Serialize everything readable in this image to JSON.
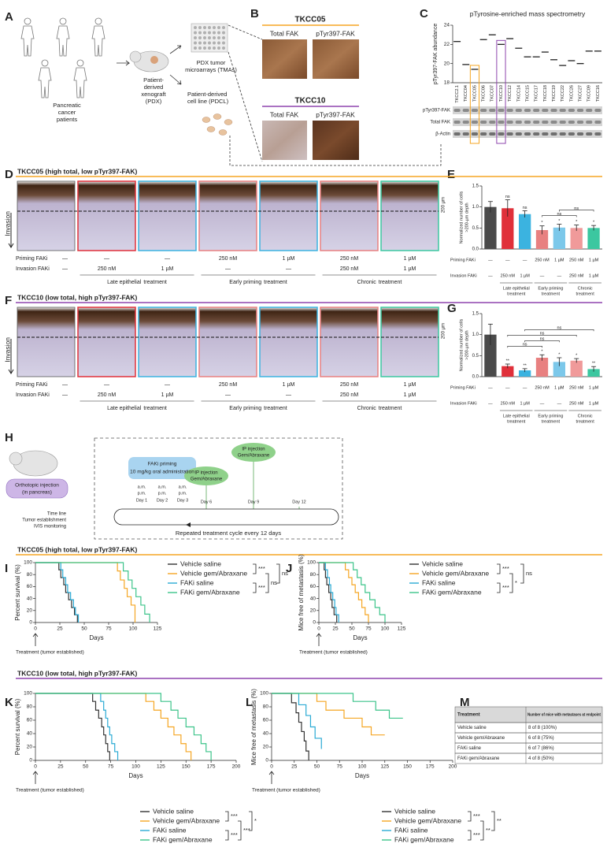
{
  "panel_labels": {
    "a": "A",
    "b": "B",
    "c": "C",
    "d": "D",
    "e": "E",
    "f": "F",
    "g": "G",
    "h": "H",
    "i": "I",
    "j": "J",
    "k": "K",
    "l": "L",
    "m": "M"
  },
  "panel_a": {
    "patients": [
      "Pancreatic",
      "cancer",
      "patients"
    ],
    "pdx": [
      "Patient-",
      "derived",
      "xenograft",
      "(PDX)"
    ],
    "tma": [
      "PDX tumor",
      "microarrays (TMAs)"
    ],
    "pdcl": [
      "Patient-derived",
      "cell line (PDCL)"
    ]
  },
  "panel_b": {
    "samples": [
      {
        "name": "TKCC05",
        "color": "#f5a623"
      },
      {
        "name": "TKCC10",
        "color": "#8e44ad"
      }
    ],
    "stains": [
      "Total FAK",
      "pTyr397-FAK"
    ]
  },
  "blot": {
    "rows": [
      "pTyr397-FAK",
      "Total FAK",
      "β-Actin"
    ]
  },
  "cohorts": [
    {
      "title": "TKCC05 (high total, low pTyr397-FAK)",
      "color": "#f5a623"
    },
    {
      "title": "TKCC10 (low total, high pTyr397-FAK)",
      "color": "#8e44ad"
    }
  ],
  "organotypic": {
    "invasion": "Invasion",
    "scale": "200 µm",
    "row_labels": [
      "Priming FAKi",
      "Invasion FAKi"
    ],
    "priming": [
      "—",
      "—",
      "—",
      "250 nM",
      "1 µM",
      "250 nM",
      "1 µM"
    ],
    "invasion_doses": [
      "—",
      "250 nM",
      "1 µM",
      "—",
      "—",
      "250 nM",
      "1 µM"
    ],
    "groups": [
      {
        "label": [
          "Late epithelial",
          "treatment"
        ],
        "columns": [
          1,
          2
        ]
      },
      {
        "label": [
          "Early priming",
          "treatment"
        ],
        "columns": [
          3,
          4
        ]
      },
      {
        "label": [
          "Chronic",
          "treatment"
        ],
        "columns": [
          5,
          6
        ]
      }
    ],
    "colors": [
      "#555555",
      "#e0303a",
      "#3bb3e0",
      "#e88080",
      "#3bb3e0",
      "#e88080",
      "#3cc7a0"
    ]
  },
  "panel_h": {
    "injection": [
      "Orthotopic injection",
      "(in pancreas)"
    ],
    "timeline": [
      "Time line",
      "Tumor establishment",
      "IVIS monitoring"
    ],
    "priming": [
      "FAKi priming",
      "10 mg/kg oral administration"
    ],
    "ampm": [
      "a.m.",
      "p.m."
    ],
    "days": [
      "Day 1",
      "Day 2",
      "Day 3",
      "Day 6",
      "Day 9",
      "Day 12"
    ],
    "ip": [
      "IP injection",
      "Gem/Abraxane"
    ],
    "cycle": "Repeated treatment cycle every 12 days"
  },
  "chart_data": [
    {
      "type": "dash",
      "title": "pTyrosine-enriched mass spectrometry",
      "y_label": "pTyr397-FAK abundance",
      "categories": [
        "TKCC2.1",
        "TKCC04",
        "TKCC05",
        "TKCC06",
        "TKCC07",
        "TKCC10",
        "TKCC12",
        "TKCC14",
        "TKCC15",
        "TKCC17",
        "TKCC18",
        "TKCC19",
        "TKCC22",
        "TKCC26",
        "TKCC27",
        "TKCC09",
        "TKCC16"
      ],
      "values": [
        22.3,
        19.9,
        19.4,
        22.5,
        23.0,
        22.0,
        22.6,
        21.6,
        20.7,
        20.7,
        21.2,
        20.4,
        19.8,
        20.3,
        20.0,
        21.3,
        21.3
      ],
      "color": "#222222",
      "ylim": [
        18,
        24
      ],
      "yticks": [
        18,
        20,
        22,
        24
      ],
      "highlight": [
        {
          "category": "TKCC05",
          "color": "#f5a623"
        },
        {
          "category": "TKCC10",
          "color": "#8e44ad"
        }
      ]
    },
    {
      "type": "bar",
      "y_label": [
        "Normalized number of cells",
        ">200-µm depth"
      ],
      "values": [
        1.0,
        0.97,
        0.83,
        0.45,
        0.51,
        0.5,
        0.5
      ],
      "errors": [
        0.13,
        0.2,
        0.08,
        0.1,
        0.08,
        0.07,
        0.06
      ],
      "colors": [
        "#4a4a4a",
        "#e0303a",
        "#3bb3e0",
        "#e88080",
        "#7cc8ea",
        "#f09a9a",
        "#3cc7a0"
      ],
      "markers": [
        null,
        "ns",
        "ns",
        "*",
        "*",
        "*",
        "*"
      ],
      "brackets": [
        {
          "from": 3,
          "to": 5,
          "label": "ns"
        },
        {
          "from": 4,
          "to": 6,
          "label": "ns"
        }
      ],
      "ylim": [
        0,
        1.5
      ],
      "yticks": [
        {
          "value": 0,
          "label": "0.0"
        },
        {
          "value": 0.5,
          "label": "0.5"
        },
        {
          "value": 1,
          "label": "1.0"
        },
        {
          "value": 1.5,
          "label": "1.5"
        }
      ]
    },
    {
      "type": "bar",
      "y_label": [
        "Normalized number of cells",
        ">200-µm depth"
      ],
      "values": [
        1.0,
        0.25,
        0.15,
        0.45,
        0.35,
        0.38,
        0.18
      ],
      "errors": [
        0.25,
        0.05,
        0.04,
        0.07,
        0.1,
        0.05,
        0.06
      ],
      "colors": [
        "#4a4a4a",
        "#e0303a",
        "#3bb3e0",
        "#e88080",
        "#7cc8ea",
        "#f09a9a",
        "#3cc7a0"
      ],
      "markers": [
        null,
        "**",
        "**",
        "*",
        "*",
        "*",
        "**"
      ],
      "brackets": [
        {
          "from": 1,
          "to": 3,
          "label": "ns"
        },
        {
          "from": 2,
          "to": 4,
          "label": "ns"
        },
        {
          "from": 1,
          "to": 5,
          "label": "ns"
        },
        {
          "from": 2,
          "to": 6,
          "label": "ns"
        }
      ],
      "ylim": [
        0,
        1.5
      ],
      "yticks": [
        {
          "value": 0,
          "label": "0.0"
        },
        {
          "value": 0.5,
          "label": "0.5"
        },
        {
          "value": 1,
          "label": "1.0"
        },
        {
          "value": 1.5,
          "label": "1.5"
        }
      ]
    },
    {
      "type": "step",
      "y_label": "Percent survival (%)",
      "x_label": "Days",
      "annotation": "Treatment (tumor established)",
      "xlim": [
        0,
        125
      ],
      "xticks": [
        0,
        25,
        50,
        75,
        100,
        125
      ],
      "ylim": [
        0,
        100
      ],
      "yticks": [
        0,
        20,
        40,
        60,
        80,
        100
      ],
      "series": [
        {
          "name": "Vehicle saline",
          "color": "#333333",
          "x": [
            0,
            24,
            26,
            29,
            31,
            34,
            37,
            40,
            43
          ],
          "values": [
            100,
            88,
            75,
            63,
            50,
            38,
            25,
            13,
            0
          ]
        },
        {
          "name": "Vehicle gem/Abraxane",
          "color": "#f5a623",
          "x": [
            0,
            84,
            87,
            91,
            94,
            98,
            102
          ],
          "values": [
            100,
            86,
            71,
            57,
            43,
            29,
            0
          ]
        },
        {
          "name": "FAKi saline",
          "color": "#2aaad4",
          "x": [
            0,
            26,
            28,
            31,
            33,
            36,
            39,
            41,
            44
          ],
          "values": [
            100,
            88,
            75,
            63,
            50,
            38,
            25,
            13,
            0
          ]
        },
        {
          "name": "FAKi gem/Abraxane",
          "color": "#3cc48a",
          "x": [
            0,
            90,
            95,
            99,
            103,
            108,
            112,
            117
          ],
          "values": [
            100,
            86,
            71,
            57,
            43,
            29,
            14,
            0
          ]
        }
      ],
      "significance": [
        {
          "between": [
            0,
            1
          ],
          "label": "***"
        },
        {
          "between": [
            2,
            3
          ],
          "label": "***"
        },
        {
          "between": [
            1,
            3
          ],
          "label": "ns"
        },
        {
          "between": [
            0,
            2
          ],
          "label": "ns"
        }
      ]
    },
    {
      "type": "step",
      "y_label": "Mice free of metastasis (%)",
      "x_label": "Days",
      "annotation": "Treatment (tumor established)",
      "xlim": [
        0,
        125
      ],
      "xticks": [
        0,
        25,
        50,
        75,
        100,
        125
      ],
      "ylim": [
        0,
        100
      ],
      "yticks": [
        0,
        20,
        40,
        60,
        80,
        100
      ],
      "series": [
        {
          "name": "Vehicle saline",
          "color": "#333333",
          "x": [
            0,
            8,
            10,
            12,
            15,
            18,
            20,
            23,
            27
          ],
          "values": [
            100,
            88,
            75,
            63,
            50,
            38,
            25,
            13,
            0
          ]
        },
        {
          "name": "Vehicle gem/Abraxane",
          "color": "#f5a623",
          "x": [
            0,
            40,
            45,
            50,
            55,
            60,
            65,
            70,
            75
          ],
          "values": [
            100,
            88,
            75,
            63,
            50,
            38,
            25,
            13,
            0
          ]
        },
        {
          "name": "FAKi saline",
          "color": "#2aaad4",
          "x": [
            0,
            10,
            13,
            16,
            18,
            21,
            24,
            26,
            30
          ],
          "values": [
            100,
            88,
            75,
            63,
            50,
            38,
            25,
            13,
            0
          ]
        },
        {
          "name": "FAKi gem/Abraxane",
          "color": "#3cc48a",
          "x": [
            0,
            52,
            58,
            64,
            70,
            77,
            85,
            92,
            100
          ],
          "values": [
            100,
            88,
            75,
            63,
            50,
            38,
            25,
            13,
            0
          ]
        }
      ],
      "significance": [
        {
          "between": [
            0,
            1
          ],
          "label": "***"
        },
        {
          "between": [
            2,
            3
          ],
          "label": "***"
        },
        {
          "between": [
            1,
            3
          ],
          "label": "*"
        },
        {
          "between": [
            0,
            2
          ],
          "label": "ns"
        }
      ]
    },
    {
      "type": "step",
      "y_label": "Percent survival (%)",
      "x_label": "Days",
      "annotation": "Treatment (tumor established)",
      "xlim": [
        0,
        200
      ],
      "xticks": [
        0,
        25,
        50,
        75,
        100,
        125,
        150,
        175,
        200
      ],
      "ylim": [
        0,
        100
      ],
      "yticks": [
        0,
        20,
        40,
        60,
        80,
        100
      ],
      "series": [
        {
          "name": "Vehicle saline",
          "color": "#333333",
          "x": [
            0,
            57,
            60,
            63,
            66,
            68,
            70,
            72,
            74
          ],
          "values": [
            100,
            88,
            75,
            63,
            50,
            38,
            25,
            13,
            0
          ]
        },
        {
          "name": "Vehicle gem/Abraxane",
          "color": "#f5a623",
          "x": [
            0,
            110,
            118,
            125,
            132,
            138,
            145,
            150,
            155
          ],
          "values": [
            100,
            88,
            75,
            63,
            50,
            38,
            25,
            13,
            0
          ]
        },
        {
          "name": "FAKi saline",
          "color": "#2aaad4",
          "x": [
            0,
            65,
            68,
            70,
            72,
            74,
            76,
            79,
            82
          ],
          "values": [
            100,
            88,
            75,
            63,
            50,
            38,
            25,
            13,
            0
          ]
        },
        {
          "name": "FAKi gem/Abraxane",
          "color": "#3cc48a",
          "x": [
            0,
            125,
            135,
            142,
            150,
            158,
            165,
            170,
            175
          ],
          "values": [
            100,
            88,
            75,
            63,
            50,
            38,
            25,
            13,
            0
          ]
        }
      ],
      "significance": [
        {
          "between": [
            0,
            1
          ],
          "label": "***"
        },
        {
          "between": [
            2,
            3
          ],
          "label": "***"
        },
        {
          "between": [
            1,
            3
          ],
          "label": "***"
        },
        {
          "between": [
            0,
            2
          ],
          "label": "*"
        }
      ]
    },
    {
      "type": "step",
      "y_label": "Mice free of metastasis (%)",
      "x_label": "Days",
      "annotation": "Treatment (tumor established)",
      "xlim": [
        0,
        200
      ],
      "xticks": [
        0,
        25,
        50,
        75,
        100,
        125,
        150,
        175,
        200
      ],
      "ylim": [
        0,
        100
      ],
      "yticks": [
        0,
        20,
        40,
        60,
        80,
        100
      ],
      "series": [
        {
          "name": "Vehicle saline",
          "color": "#333333",
          "x": [
            0,
            22,
            27,
            30,
            33,
            36,
            38,
            41
          ],
          "values": [
            100,
            86,
            71,
            57,
            43,
            29,
            14,
            0
          ]
        },
        {
          "name": "Vehicle gem/Abraxane",
          "color": "#f5a623",
          "x": [
            0,
            50,
            60,
            80,
            100,
            110,
            125
          ],
          "values": [
            100,
            88,
            75,
            63,
            50,
            38,
            38
          ]
        },
        {
          "name": "FAKi saline",
          "color": "#2aaad4",
          "x": [
            0,
            30,
            38,
            43,
            48,
            55
          ],
          "values": [
            100,
            83,
            67,
            50,
            33,
            17
          ]
        },
        {
          "name": "FAKi gem/Abraxane",
          "color": "#3cc48a",
          "x": [
            0,
            90,
            115,
            130,
            145
          ],
          "values": [
            100,
            88,
            75,
            63,
            63
          ]
        }
      ],
      "significance": [
        {
          "between": [
            0,
            1
          ],
          "label": "***"
        },
        {
          "between": [
            2,
            3
          ],
          "label": "***"
        },
        {
          "between": [
            1,
            3
          ],
          "label": "**"
        },
        {
          "between": [
            0,
            2
          ],
          "label": "**"
        }
      ]
    }
  ],
  "panel_m": {
    "header": [
      "Treatment",
      "Number of mice with metastases at endpoint"
    ],
    "rows": [
      [
        "Vehicle saline",
        "8 of 8 (100%)"
      ],
      [
        "Vehicle gem/Abraxane",
        "6 of 8 (75%)"
      ],
      [
        "FAKi saline",
        "6 of 7 (86%)"
      ],
      [
        "FAKi gem/Abraxane",
        "4 of 8 (50%)"
      ]
    ]
  }
}
